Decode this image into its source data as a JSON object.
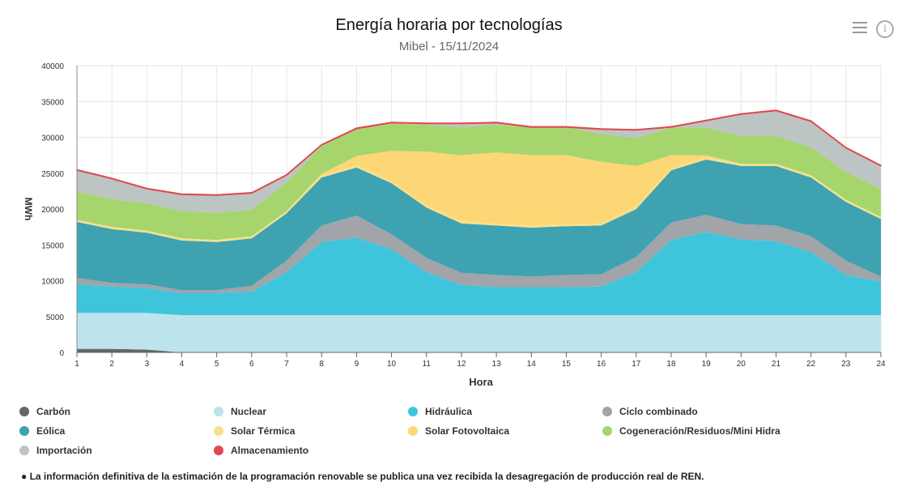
{
  "header": {
    "title": "Energía horaria por tecnologías",
    "subtitle": "Mibel - 15/11/2024",
    "menu_icon": "hamburger-menu-icon",
    "info_icon": "info-icon",
    "info_glyph": "i"
  },
  "note": "● La información definitiva de la estimación de la programación renovable se publica una vez recibida la desagregación de producción real de REN.",
  "chart_data": {
    "type": "area",
    "stacked": true,
    "xlabel": "Hora",
    "ylabel": "MWh",
    "ylim": [
      0,
      40000
    ],
    "yticks": [
      0,
      5000,
      10000,
      15000,
      20000,
      25000,
      30000,
      35000,
      40000
    ],
    "categories": [
      1,
      2,
      3,
      4,
      5,
      6,
      7,
      8,
      9,
      10,
      11,
      12,
      13,
      14,
      15,
      16,
      17,
      18,
      19,
      20,
      21,
      22,
      23,
      24
    ],
    "grid": true,
    "legend_placement": "bottom",
    "series": [
      {
        "name": "Carbón",
        "color": "#666666",
        "values": [
          500,
          500,
          400,
          0,
          0,
          0,
          0,
          0,
          0,
          0,
          0,
          0,
          0,
          0,
          0,
          0,
          0,
          0,
          0,
          0,
          0,
          0,
          0,
          0
        ]
      },
      {
        "name": "Nuclear",
        "color": "#bde3ec",
        "values": [
          5000,
          5000,
          5100,
          5200,
          5200,
          5200,
          5200,
          5200,
          5200,
          5200,
          5200,
          5200,
          5200,
          5200,
          5200,
          5200,
          5200,
          5200,
          5200,
          5200,
          5200,
          5200,
          5200,
          5200
        ]
      },
      {
        "name": "Hidráulica",
        "color": "#3ec5dc",
        "values": [
          4000,
          3700,
          3500,
          3100,
          3100,
          3300,
          6000,
          10200,
          10800,
          9200,
          6000,
          4200,
          3900,
          3900,
          3900,
          4000,
          6000,
          10500,
          11600,
          10600,
          10300,
          8800,
          5600,
          4700
        ]
      },
      {
        "name": "Ciclo combinado",
        "color": "#a1a4a8",
        "values": [
          900,
          500,
          500,
          400,
          400,
          800,
          1600,
          2300,
          3100,
          2100,
          2000,
          1700,
          1700,
          1500,
          1700,
          1700,
          2100,
          2400,
          2400,
          2100,
          2200,
          2200,
          2000,
          700
        ]
      },
      {
        "name": "Eólica",
        "color": "#3ea2b0",
        "values": [
          7800,
          7500,
          7200,
          6900,
          6700,
          6600,
          6600,
          6700,
          6700,
          7100,
          7000,
          6900,
          6900,
          6800,
          6800,
          6800,
          6700,
          7300,
          7700,
          8100,
          8300,
          8200,
          8200,
          8000
        ]
      },
      {
        "name": "Solar Térmica",
        "color": "#f7e08c",
        "values": [
          300,
          300,
          300,
          300,
          300,
          300,
          300,
          300,
          300,
          300,
          300,
          300,
          300,
          300,
          300,
          300,
          300,
          300,
          300,
          300,
          300,
          300,
          300,
          300
        ]
      },
      {
        "name": "Solar Fotovoltaica",
        "color": "#fdd775",
        "values": [
          0,
          0,
          0,
          0,
          0,
          0,
          0,
          200,
          1300,
          4200,
          7500,
          9200,
          9900,
          9800,
          9600,
          8600,
          5700,
          1800,
          300,
          0,
          0,
          0,
          0,
          0
        ]
      },
      {
        "name": "Cogeneración/Residuos/Mini Hidra",
        "color": "#a6d56e",
        "values": [
          3900,
          3900,
          3800,
          3800,
          3800,
          3700,
          4000,
          3900,
          3800,
          3800,
          3800,
          3900,
          3900,
          3900,
          3900,
          3900,
          3900,
          3900,
          3900,
          3900,
          3900,
          3900,
          3900,
          3900
        ]
      },
      {
        "name": "Importación",
        "color": "#bcc4c4",
        "values": [
          3000,
          2800,
          2000,
          2300,
          2400,
          2300,
          1000,
          100,
          0,
          100,
          100,
          500,
          200,
          0,
          0,
          600,
          1100,
          0,
          900,
          3000,
          3500,
          3600,
          3300,
          3200
        ]
      },
      {
        "name": "Almacenamiento",
        "color": "#e0484c",
        "values": [
          100,
          100,
          100,
          100,
          100,
          100,
          100,
          100,
          100,
          100,
          100,
          100,
          100,
          100,
          100,
          100,
          100,
          100,
          100,
          100,
          100,
          100,
          100,
          100
        ]
      }
    ]
  }
}
